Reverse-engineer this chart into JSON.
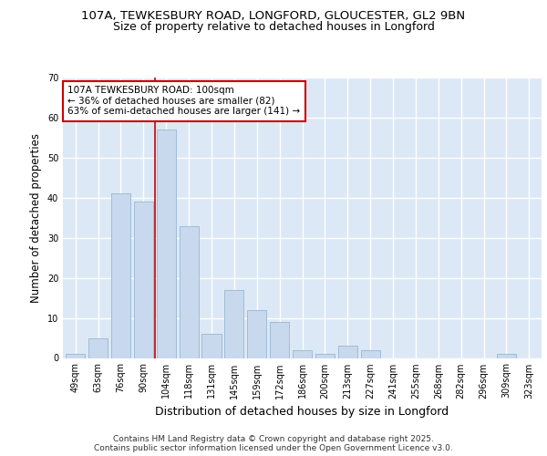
{
  "title_line1": "107A, TEWKESBURY ROAD, LONGFORD, GLOUCESTER, GL2 9BN",
  "title_line2": "Size of property relative to detached houses in Longford",
  "xlabel": "Distribution of detached houses by size in Longford",
  "ylabel": "Number of detached properties",
  "categories": [
    "49sqm",
    "63sqm",
    "76sqm",
    "90sqm",
    "104sqm",
    "118sqm",
    "131sqm",
    "145sqm",
    "159sqm",
    "172sqm",
    "186sqm",
    "200sqm",
    "213sqm",
    "227sqm",
    "241sqm",
    "255sqm",
    "268sqm",
    "282sqm",
    "296sqm",
    "309sqm",
    "323sqm"
  ],
  "values": [
    1,
    5,
    41,
    39,
    57,
    33,
    6,
    17,
    12,
    9,
    2,
    1,
    3,
    2,
    0,
    0,
    0,
    0,
    0,
    1,
    0
  ],
  "bar_color": "#c8d9ed",
  "bar_edge_color": "#a0bcd8",
  "plot_bg_color": "#dce8f5",
  "fig_bg_color": "#ffffff",
  "grid_color": "#ffffff",
  "vline_x": 3.5,
  "vline_color": "#cc0000",
  "annotation_text": "107A TEWKESBURY ROAD: 100sqm\n← 36% of detached houses are smaller (82)\n63% of semi-detached houses are larger (141) →",
  "annotation_box_color": "white",
  "annotation_box_edge_color": "#cc0000",
  "ylim": [
    0,
    70
  ],
  "yticks": [
    0,
    10,
    20,
    30,
    40,
    50,
    60,
    70
  ],
  "footer_text": "Contains HM Land Registry data © Crown copyright and database right 2025.\nContains public sector information licensed under the Open Government Licence v3.0.",
  "title_fontsize": 9.5,
  "subtitle_fontsize": 9,
  "ylabel_fontsize": 8.5,
  "xlabel_fontsize": 9,
  "tick_fontsize": 7,
  "annotation_fontsize": 7.5,
  "footer_fontsize": 6.5
}
